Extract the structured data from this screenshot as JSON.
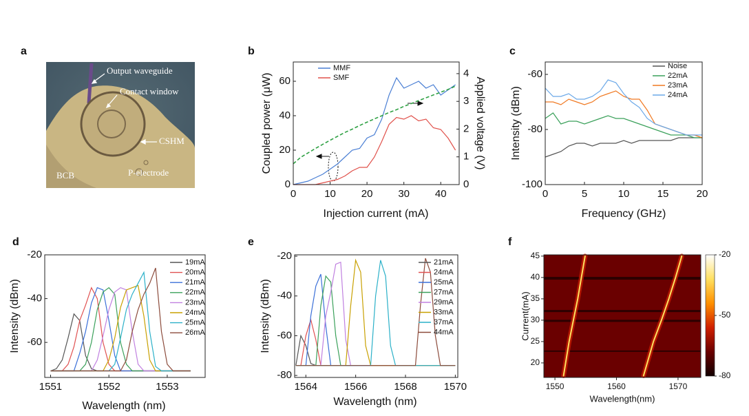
{
  "image_panel": {
    "panel_label": "a",
    "labels": [
      "Output waveguide",
      "Contact window",
      "CSHM",
      "BCB",
      "P-electrode"
    ]
  },
  "chart_data": [
    {
      "type": "line",
      "panel_label": "b",
      "x_label": "Injection current (mA)",
      "y_label": "Coupled power (μW)",
      "y2_label": "Applied voltage (V)",
      "x": [
        0,
        2,
        4,
        6,
        8,
        10,
        12,
        14,
        16,
        18,
        20,
        22,
        24,
        26,
        28,
        30,
        32,
        34,
        36,
        38,
        40,
        42,
        44
      ],
      "series": [
        {
          "name": "MMF",
          "color": "#4a7fd4",
          "values": [
            0,
            1,
            2,
            4,
            6,
            9,
            12,
            16,
            20,
            21,
            27,
            29,
            38,
            52,
            62,
            56,
            58,
            60,
            56,
            58,
            52,
            55,
            58
          ]
        },
        {
          "name": "SMF",
          "color": "#e0504a",
          "values": [
            0,
            0,
            0,
            0,
            1,
            2,
            3,
            5,
            8,
            10,
            10,
            16,
            25,
            35,
            39,
            38,
            40,
            37,
            38,
            33,
            32,
            27,
            20
          ]
        },
        {
          "color": "#2ea043",
          "style": "dashed",
          "axis": "y2",
          "values": [
            0.75,
            0.98,
            1.14,
            1.3,
            1.45,
            1.6,
            1.74,
            1.88,
            2.0,
            2.13,
            2.25,
            2.37,
            2.48,
            2.6,
            2.7,
            2.82,
            2.92,
            3.03,
            3.13,
            3.23,
            3.33,
            3.43,
            3.55
          ]
        }
      ],
      "xlim": [
        0,
        45
      ],
      "xticks": [
        0,
        10,
        20,
        30,
        40
      ],
      "ylim": [
        0,
        71.2
      ],
      "yticks": [
        0,
        20,
        40,
        60
      ],
      "y2lim": [
        0,
        4.42
      ],
      "y2ticks": [
        0,
        1,
        2,
        3,
        4
      ],
      "legend": "top-left"
    },
    {
      "type": "line",
      "panel_label": "c",
      "x_label": "Frequency (GHz)",
      "y_label": "Intensity (dBm)",
      "x": [
        0,
        1,
        2,
        3,
        4,
        5,
        6,
        7,
        8,
        9,
        10,
        11,
        12,
        13,
        14,
        15,
        16,
        17,
        18,
        19,
        20
      ],
      "series": [
        {
          "name": "Noise",
          "color": "#555555",
          "values": [
            -90,
            -89,
            -88,
            -86,
            -85,
            -85,
            -86,
            -85,
            -85,
            -85,
            -84,
            -85,
            -84,
            -84,
            -84,
            -84,
            -84,
            -83,
            -83,
            -83,
            -83
          ]
        },
        {
          "name": "22mA",
          "color": "#3aa05a",
          "values": [
            -76,
            -74,
            -78,
            -77,
            -77,
            -78,
            -77,
            -76,
            -75,
            -76,
            -76,
            -77,
            -78,
            -79,
            -80,
            -81,
            -82,
            -82,
            -82,
            -83,
            -83
          ]
        },
        {
          "name": "23mA",
          "color": "#f07820",
          "values": [
            -70,
            -70,
            -71,
            -69,
            -70,
            -71,
            -70,
            -68,
            -67,
            -66,
            -68,
            -69,
            -69,
            -73,
            -78,
            -79,
            -80,
            -81,
            -82,
            -82,
            -83
          ]
        },
        {
          "name": "24mA",
          "color": "#6aa8e8",
          "values": [
            -65,
            -68,
            -68,
            -67,
            -69,
            -69,
            -68,
            -66,
            -62,
            -63,
            -67,
            -70,
            -72,
            -76,
            -78,
            -79,
            -80,
            -81,
            -82,
            -82,
            -82
          ]
        }
      ],
      "xlim": [
        0,
        20
      ],
      "xticks": [
        0,
        5,
        10,
        15,
        20
      ],
      "ylim": [
        -100,
        -55.5
      ],
      "yticks": [
        -100,
        -80,
        -60
      ],
      "legend": "top-right"
    },
    {
      "type": "line",
      "panel_label": "d",
      "x_label": "Wavelength (nm)",
      "y_label": "Intensity (dBm)",
      "x": [
        1551.0,
        1551.1,
        1551.2,
        1551.3,
        1551.4,
        1551.5,
        1551.6,
        1551.7,
        1551.8,
        1551.9,
        1552.0,
        1552.1,
        1552.2,
        1552.3,
        1552.4,
        1552.5,
        1552.6,
        1552.7,
        1552.8,
        1552.9,
        1553.0,
        1553.1,
        1553.2,
        1553.3,
        1553.4
      ],
      "series": [
        {
          "name": "19mA",
          "color": "#555555",
          "values": [
            -73,
            -72,
            -68,
            -58,
            -47,
            -50,
            -66,
            -72,
            -73,
            -73,
            -73,
            -73,
            -73,
            -73,
            -73,
            -73,
            -73,
            -73,
            -73,
            -73,
            -73,
            -73,
            -73,
            -73,
            -73
          ]
        },
        {
          "name": "20mA",
          "color": "#e05050",
          "values": [
            -73,
            -73,
            -73,
            -70,
            -62,
            -50,
            -43,
            -35,
            -40,
            -60,
            -70,
            -73,
            -73,
            -73,
            -73,
            -73,
            -73,
            -73,
            -73,
            -73,
            -73,
            -73,
            -73,
            -73,
            -73
          ]
        },
        {
          "name": "21mA",
          "color": "#3a6fd8",
          "values": [
            -73,
            -73,
            -73,
            -73,
            -73,
            -65,
            -55,
            -42,
            -35,
            -36,
            -50,
            -66,
            -73,
            -73,
            -73,
            -73,
            -73,
            -73,
            -73,
            -73,
            -73,
            -73,
            -73,
            -73,
            -73
          ]
        },
        {
          "name": "22mA",
          "color": "#3aa05a",
          "values": [
            -73,
            -73,
            -73,
            -73,
            -73,
            -73,
            -70,
            -60,
            -45,
            -37,
            -35,
            -38,
            -60,
            -70,
            -73,
            -73,
            -73,
            -73,
            -73,
            -73,
            -73,
            -73,
            -73,
            -73,
            -73
          ]
        },
        {
          "name": "23mA",
          "color": "#c080e0",
          "values": [
            -73,
            -73,
            -73,
            -73,
            -73,
            -73,
            -73,
            -73,
            -68,
            -57,
            -45,
            -37,
            -35,
            -36,
            -55,
            -70,
            -73,
            -73,
            -73,
            -73,
            -73,
            -73,
            -73,
            -73,
            -73
          ]
        },
        {
          "name": "24mA",
          "color": "#c8a000",
          "values": [
            -73,
            -73,
            -73,
            -73,
            -73,
            -73,
            -73,
            -73,
            -73,
            -73,
            -68,
            -58,
            -44,
            -36,
            -35,
            -34,
            -48,
            -68,
            -73,
            -73,
            -73,
            -73,
            -73,
            -73,
            -73
          ]
        },
        {
          "name": "25mA",
          "color": "#2ab0c8",
          "values": [
            -73,
            -73,
            -73,
            -73,
            -73,
            -73,
            -73,
            -73,
            -73,
            -73,
            -73,
            -70,
            -58,
            -45,
            -38,
            -33,
            -28,
            -55,
            -71,
            -73,
            -73,
            -73,
            -73,
            -73,
            -73
          ]
        },
        {
          "name": "26mA",
          "color": "#8b4a3a",
          "values": [
            -73,
            -73,
            -73,
            -73,
            -73,
            -73,
            -73,
            -73,
            -73,
            -73,
            -73,
            -73,
            -73,
            -68,
            -55,
            -45,
            -38,
            -33,
            -26,
            -55,
            -70,
            -73,
            -73,
            -73,
            -73
          ]
        }
      ],
      "xlim": [
        1550.9,
        1553.65
      ],
      "xticks": [
        1551,
        1552,
        1553
      ],
      "ylim": [
        -76,
        -20
      ],
      "yticks": [
        -60,
        -40,
        -20
      ],
      "legend": "right"
    },
    {
      "type": "line",
      "panel_label": "e",
      "x_label": "Wavelength (nm)",
      "y_label": "Intensity (dBm)",
      "x": [
        1563.6,
        1563.8,
        1564.0,
        1564.2,
        1564.4,
        1564.6,
        1564.8,
        1565.0,
        1565.2,
        1565.4,
        1565.6,
        1565.8,
        1566.0,
        1566.2,
        1566.4,
        1566.6,
        1566.8,
        1567.0,
        1567.2,
        1567.4,
        1567.6,
        1567.8,
        1568.0,
        1568.2,
        1568.4,
        1568.6,
        1568.8,
        1569.0,
        1569.2,
        1569.4,
        1569.6,
        1569.8,
        1570.0
      ],
      "series": [
        {
          "name": "21mA",
          "color": "#555555",
          "values": [
            -75,
            -60,
            -65,
            -74,
            -75,
            -75,
            -75,
            -75,
            -75,
            -75,
            -75,
            -75,
            -75,
            -75,
            -75,
            -75,
            -75,
            -75,
            -75,
            -75,
            -75,
            -75,
            -75,
            -75,
            -75,
            -75,
            -75,
            -75,
            -75,
            -75,
            -75,
            -75,
            -75
          ]
        },
        {
          "name": "24mA",
          "color": "#e05050",
          "values": [
            -75,
            -75,
            -60,
            -52,
            -62,
            -75,
            -75,
            -75,
            -75,
            -75,
            -75,
            -75,
            -75,
            -75,
            -75,
            -75,
            -75,
            -75,
            -75,
            -75,
            -75,
            -75,
            -75,
            -75,
            -75,
            -75,
            -75,
            -75,
            -75,
            -75,
            -75,
            -75,
            -75
          ]
        },
        {
          "name": "25mA",
          "color": "#3a6fd8",
          "values": [
            -75,
            -75,
            -75,
            -50,
            -35,
            -29,
            -55,
            -75,
            -75,
            -75,
            -75,
            -75,
            -75,
            -75,
            -75,
            -75,
            -75,
            -75,
            -75,
            -75,
            -75,
            -75,
            -75,
            -75,
            -75,
            -75,
            -75,
            -75,
            -75,
            -75,
            -75,
            -75,
            -75
          ]
        },
        {
          "name": "27mA",
          "color": "#3aa05a",
          "values": [
            -75,
            -75,
            -75,
            -75,
            -75,
            -45,
            -30,
            -33,
            -60,
            -75,
            -75,
            -75,
            -75,
            -75,
            -75,
            -75,
            -75,
            -75,
            -75,
            -75,
            -75,
            -75,
            -75,
            -75,
            -75,
            -75,
            -75,
            -75,
            -75,
            -75,
            -75,
            -75,
            -75
          ]
        },
        {
          "name": "29mA",
          "color": "#c080e0",
          "values": [
            -75,
            -75,
            -75,
            -75,
            -75,
            -75,
            -50,
            -38,
            -24,
            -23,
            -62,
            -75,
            -75,
            -75,
            -75,
            -75,
            -75,
            -75,
            -75,
            -75,
            -75,
            -75,
            -75,
            -75,
            -75,
            -75,
            -75,
            -75,
            -75,
            -75,
            -75,
            -75,
            -75
          ]
        },
        {
          "name": "33mA",
          "color": "#c8a000",
          "values": [
            -75,
            -75,
            -75,
            -75,
            -75,
            -75,
            -75,
            -75,
            -75,
            -75,
            -75,
            -45,
            -22,
            -28,
            -65,
            -75,
            -75,
            -75,
            -75,
            -75,
            -75,
            -75,
            -75,
            -75,
            -75,
            -75,
            -75,
            -75,
            -75,
            -75,
            -75,
            -75,
            -75
          ]
        },
        {
          "name": "37mA",
          "color": "#2ab0c8",
          "values": [
            -75,
            -75,
            -75,
            -75,
            -75,
            -75,
            -75,
            -75,
            -75,
            -75,
            -75,
            -75,
            -75,
            -75,
            -75,
            -75,
            -40,
            -22,
            -30,
            -65,
            -75,
            -75,
            -75,
            -75,
            -75,
            -75,
            -75,
            -75,
            -75,
            -75,
            -75,
            -75,
            -75
          ]
        },
        {
          "name": "44mA",
          "color": "#8b4a3a",
          "values": [
            -75,
            -75,
            -75,
            -75,
            -75,
            -75,
            -75,
            -75,
            -75,
            -75,
            -75,
            -75,
            -75,
            -75,
            -75,
            -75,
            -75,
            -75,
            -75,
            -75,
            -75,
            -75,
            -75,
            -75,
            -75,
            -45,
            -21,
            -28,
            -60,
            -75,
            -75,
            -75,
            -75
          ]
        }
      ],
      "xlim": [
        1563.55,
        1570.1
      ],
      "xticks": [
        1564,
        1566,
        1568,
        1570
      ],
      "ylim": [
        -81,
        -19.3
      ],
      "yticks": [
        -80,
        -60,
        -40,
        -20
      ],
      "legend": "right"
    },
    {
      "type": "heatmap",
      "panel_label": "f",
      "x_label": "Wavelength(nm)",
      "y_label": "Current(mA)",
      "series": [
        {
          "x": [
            1551.4,
            1552.3,
            1553.0,
            1553.7,
            1554.3,
            1554.9
          ],
          "values": [
            17,
            25,
            30,
            35,
            40,
            45
          ]
        },
        {
          "x": [
            1564.4,
            1566.0,
            1567.3,
            1568.5,
            1569.6,
            1570.6
          ],
          "values": [
            17,
            25,
            30,
            35,
            40,
            45
          ]
        }
      ],
      "xlim": [
        1548.2,
        1573.7
      ],
      "xticks": [
        1550,
        1560,
        1570
      ],
      "ylim": [
        16.6,
        45.3
      ],
      "yticks": [
        20,
        25,
        30,
        35,
        40,
        45
      ],
      "zlim": [
        -80,
        -20
      ],
      "zticks": [
        -20,
        -50,
        -80
      ],
      "colormap": [
        "#120000",
        "#6a0000",
        "#d02000",
        "#ff9000",
        "#ffe060",
        "#ffffff"
      ]
    }
  ]
}
